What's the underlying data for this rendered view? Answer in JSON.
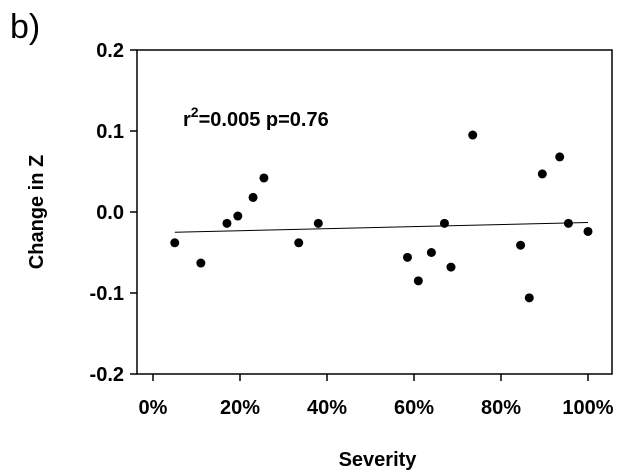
{
  "panel_label": "b)",
  "chart_data": {
    "type": "scatter",
    "xlabel": "Severity",
    "ylabel": "Change in Z",
    "xlim": [
      0,
      100
    ],
    "ylim": [
      -0.2,
      0.2
    ],
    "x_ticks": [
      0,
      20,
      40,
      60,
      80,
      100
    ],
    "x_tick_labels": [
      "0%",
      "20%",
      "40%",
      "60%",
      "80%",
      "100%"
    ],
    "y_ticks": [
      -0.2,
      -0.1,
      0.0,
      0.1,
      0.2
    ],
    "y_tick_labels": [
      "-0.2",
      "-0.1",
      "0.0",
      "0.1",
      "0.2"
    ],
    "annotation": {
      "r_base": "r",
      "r_exp": "2",
      "rest": "=0.005  p=0.76"
    },
    "points": [
      {
        "x": 5,
        "y": -0.038
      },
      {
        "x": 11,
        "y": -0.063
      },
      {
        "x": 17,
        "y": -0.014
      },
      {
        "x": 19.5,
        "y": -0.005
      },
      {
        "x": 23,
        "y": 0.018
      },
      {
        "x": 25.5,
        "y": 0.042
      },
      {
        "x": 33.5,
        "y": -0.038
      },
      {
        "x": 38,
        "y": -0.014
      },
      {
        "x": 58.5,
        "y": -0.056
      },
      {
        "x": 61,
        "y": -0.085
      },
      {
        "x": 64,
        "y": -0.05
      },
      {
        "x": 67,
        "y": -0.014
      },
      {
        "x": 68.5,
        "y": -0.068
      },
      {
        "x": 73.5,
        "y": 0.095
      },
      {
        "x": 84.5,
        "y": -0.041
      },
      {
        "x": 86.5,
        "y": -0.106
      },
      {
        "x": 89.5,
        "y": 0.047
      },
      {
        "x": 93.5,
        "y": 0.068
      },
      {
        "x": 95.5,
        "y": -0.014
      },
      {
        "x": 100,
        "y": -0.024
      }
    ],
    "regression": {
      "x0": 5,
      "y0": -0.025,
      "x1": 100,
      "y1": -0.013
    },
    "grid": false,
    "marker_color": "#000000"
  }
}
